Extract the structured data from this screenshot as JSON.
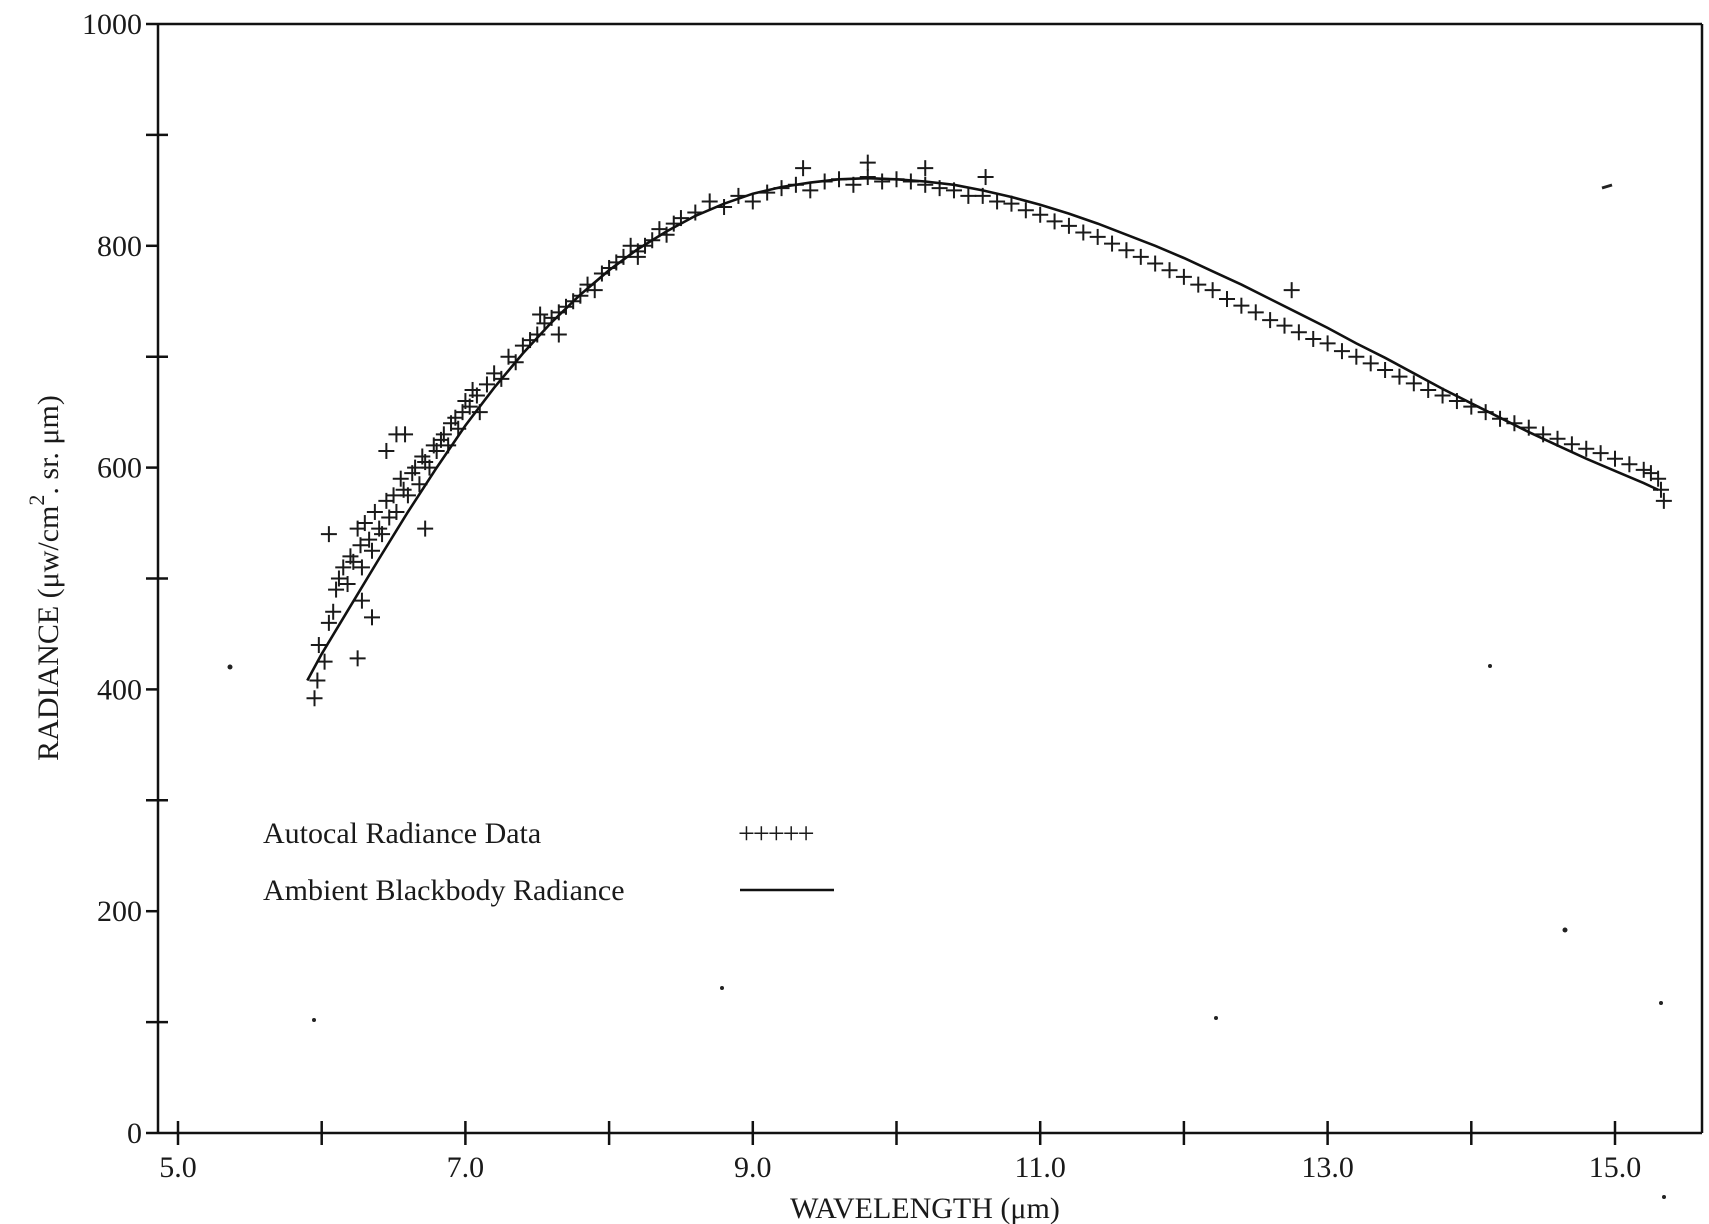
{
  "chart_data": {
    "type": "scatter",
    "xlabel": "WAVELENGTH (μm)",
    "ylabel": "RADIANCE (μw/cm², sr. μm)",
    "ylabel_parts": {
      "main": "RADIANCE (μw/cm",
      "sup": "2",
      "rest": ". sr. μm)"
    },
    "xlim": [
      5.0,
      16.0
    ],
    "ylim": [
      0,
      1000
    ],
    "x_tick_labels": [
      "5.0",
      "7.0",
      "9.0",
      "11.0",
      "13.0",
      "15.0"
    ],
    "x_tick_values": [
      5.0,
      7.0,
      9.0,
      11.0,
      13.0,
      15.0
    ],
    "x_minor_ticks": [
      6.0,
      8.0,
      10.0,
      12.0,
      14.0
    ],
    "y_tick_labels": [
      "0",
      "200",
      "400",
      "600",
      "800",
      "1000"
    ],
    "y_tick_values": [
      0,
      200,
      400,
      600,
      800,
      1000
    ],
    "y_minor_ticks": [
      100,
      300,
      500,
      700,
      900
    ],
    "grid": false,
    "legend_position": "lower-left",
    "series": [
      {
        "name": "Autocal Radiance Data",
        "legend_marker": "+++++",
        "style": "markers",
        "marker": "plus",
        "x": [
          5.95,
          5.97,
          5.98,
          6.02,
          6.05,
          6.08,
          6.1,
          6.12,
          6.15,
          6.18,
          6.2,
          6.22,
          6.25,
          6.27,
          6.28,
          6.3,
          6.33,
          6.35,
          6.37,
          6.4,
          6.42,
          6.45,
          6.47,
          6.5,
          6.52,
          6.55,
          6.57,
          6.6,
          6.63,
          6.65,
          6.68,
          6.7,
          6.72,
          6.75,
          6.78,
          6.8,
          6.83,
          6.85,
          6.88,
          6.9,
          6.93,
          6.95,
          6.98,
          7.0,
          7.03,
          7.05,
          7.08,
          7.1,
          7.15,
          7.2,
          7.25,
          7.3,
          7.35,
          7.4,
          7.45,
          7.5,
          7.55,
          7.6,
          7.65,
          7.7,
          7.75,
          7.8,
          7.85,
          7.9,
          7.95,
          8.0,
          8.05,
          8.1,
          8.15,
          8.2,
          8.25,
          8.3,
          8.35,
          8.4,
          8.45,
          8.5,
          8.6,
          8.7,
          8.8,
          8.9,
          9.0,
          9.1,
          9.2,
          9.3,
          9.4,
          9.5,
          9.6,
          9.7,
          9.8,
          9.9,
          10.0,
          10.1,
          10.2,
          10.3,
          10.4,
          10.5,
          10.6,
          10.7,
          10.8,
          10.9,
          11.0,
          11.1,
          11.2,
          11.3,
          11.4,
          11.5,
          11.6,
          11.7,
          11.8,
          11.9,
          12.0,
          12.1,
          12.2,
          12.3,
          12.4,
          12.5,
          12.6,
          12.7,
          12.8,
          12.9,
          13.0,
          13.1,
          13.2,
          13.3,
          13.4,
          13.5,
          13.6,
          13.7,
          13.8,
          13.9,
          14.0,
          14.1,
          14.2,
          14.3,
          14.4,
          14.5,
          14.6,
          14.7,
          14.8,
          14.9,
          15.0,
          15.1,
          15.2,
          15.25,
          15.3,
          15.32,
          15.34,
          6.45,
          6.52,
          6.25,
          6.05,
          6.72,
          6.35,
          6.28,
          6.58,
          9.8,
          10.2,
          10.62,
          12.75,
          9.35,
          8.2,
          7.52,
          7.65
        ],
        "y": [
          392,
          408,
          440,
          425,
          460,
          470,
          490,
          500,
          510,
          495,
          520,
          515,
          545,
          530,
          480,
          550,
          535,
          525,
          560,
          545,
          540,
          570,
          555,
          575,
          560,
          590,
          580,
          575,
          595,
          600,
          585,
          610,
          605,
          600,
          620,
          615,
          625,
          630,
          620,
          640,
          645,
          635,
          650,
          660,
          655,
          670,
          665,
          650,
          675,
          685,
          680,
          700,
          695,
          710,
          715,
          720,
          730,
          735,
          740,
          745,
          750,
          755,
          765,
          760,
          775,
          780,
          785,
          790,
          800,
          795,
          800,
          805,
          815,
          810,
          820,
          825,
          830,
          840,
          835,
          845,
          840,
          848,
          852,
          855,
          850,
          858,
          860,
          855,
          862,
          858,
          860,
          858,
          855,
          852,
          850,
          845,
          845,
          840,
          838,
          832,
          828,
          822,
          818,
          812,
          808,
          802,
          796,
          790,
          784,
          778,
          772,
          765,
          760,
          752,
          746,
          740,
          733,
          728,
          722,
          716,
          712,
          705,
          700,
          694,
          688,
          682,
          676,
          670,
          665,
          660,
          655,
          650,
          644,
          640,
          636,
          630,
          626,
          621,
          617,
          613,
          608,
          603,
          598,
          595,
          590,
          580,
          570,
          615,
          630,
          428,
          540,
          545,
          465,
          510,
          630,
          875,
          870,
          862,
          760,
          870,
          790,
          738,
          720
        ]
      },
      {
        "name": "Ambient Blackbody Radiance",
        "legend_marker": "——",
        "style": "line",
        "x": [
          5.9,
          6.0,
          6.2,
          6.4,
          6.6,
          6.8,
          7.0,
          7.2,
          7.4,
          7.6,
          7.8,
          8.0,
          8.2,
          8.4,
          8.6,
          8.8,
          9.0,
          9.2,
          9.4,
          9.6,
          9.8,
          10.0,
          10.2,
          10.4,
          10.6,
          10.8,
          11.0,
          11.2,
          11.4,
          11.6,
          11.8,
          12.0,
          12.2,
          12.4,
          12.6,
          12.8,
          13.0,
          13.2,
          13.4,
          13.6,
          13.8,
          14.0,
          14.2,
          14.4,
          14.6,
          14.8,
          15.0,
          15.2,
          15.3
        ],
        "y": [
          408,
          432,
          475,
          518,
          560,
          600,
          638,
          672,
          703,
          731,
          756,
          778,
          797,
          813,
          827,
          838,
          847,
          853,
          857,
          860,
          861,
          860,
          858,
          855,
          850,
          844,
          837,
          829,
          820,
          810,
          800,
          789,
          777,
          765,
          752,
          739,
          726,
          712,
          699,
          685,
          671,
          658,
          645,
          632,
          620,
          608,
          597,
          586,
          580
        ]
      }
    ]
  },
  "legend": {
    "items": [
      {
        "label": "Autocal Radiance Data",
        "marker": "+++++"
      },
      {
        "label": "Ambient Blackbody Radiance",
        "marker": "——"
      }
    ]
  }
}
